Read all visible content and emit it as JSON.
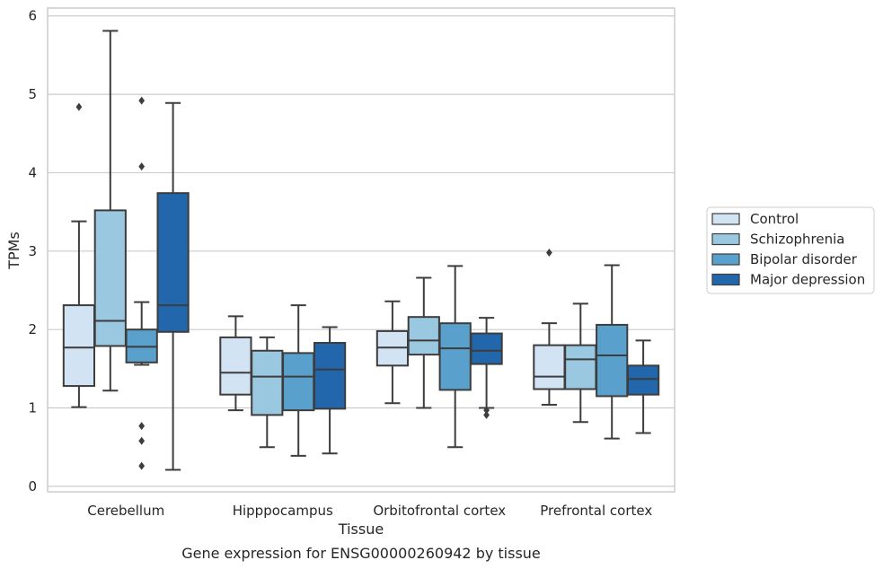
{
  "chart_data": {
    "type": "box",
    "title": "",
    "caption": "Gene expression for ENSG00000260942 by tissue",
    "xlabel": "Tissue",
    "ylabel": "TPMs",
    "ylim": [
      -0.07,
      6.1
    ],
    "yticks": [
      0,
      1,
      2,
      3,
      4,
      5,
      6
    ],
    "grid": "horizontal",
    "legend_position": "right",
    "categories": [
      "Cerebellum",
      "Hipppocampus",
      "Orbitofrontal cortex",
      "Prefrontal cortex"
    ],
    "series": [
      {
        "name": "Control",
        "color": "#d2e3f3",
        "boxes": [
          {
            "whislo": 1.01,
            "q1": 1.28,
            "med": 1.77,
            "q3": 2.31,
            "whishi": 3.38,
            "fliers": [
              4.84
            ]
          },
          {
            "whislo": 0.97,
            "q1": 1.17,
            "med": 1.45,
            "q3": 1.9,
            "whishi": 2.17,
            "fliers": []
          },
          {
            "whislo": 1.06,
            "q1": 1.54,
            "med": 1.77,
            "q3": 1.98,
            "whishi": 2.36,
            "fliers": []
          },
          {
            "whislo": 1.04,
            "q1": 1.24,
            "med": 1.4,
            "q3": 1.8,
            "whishi": 2.08,
            "fliers": [
              2.98
            ]
          }
        ]
      },
      {
        "name": "Schizophrenia",
        "color": "#9ac8e0",
        "boxes": [
          {
            "whislo": 1.22,
            "q1": 1.79,
            "med": 2.11,
            "q3": 3.52,
            "whishi": 5.81,
            "fliers": []
          },
          {
            "whislo": 0.5,
            "q1": 0.91,
            "med": 1.4,
            "q3": 1.73,
            "whishi": 1.9,
            "fliers": []
          },
          {
            "whislo": 1.0,
            "q1": 1.68,
            "med": 1.86,
            "q3": 2.16,
            "whishi": 2.66,
            "fliers": []
          },
          {
            "whislo": 0.82,
            "q1": 1.24,
            "med": 1.62,
            "q3": 1.8,
            "whishi": 2.33,
            "fliers": []
          }
        ]
      },
      {
        "name": "Bipolar disorder",
        "color": "#5aa0cd",
        "boxes": [
          {
            "whislo": 1.55,
            "q1": 1.58,
            "med": 1.78,
            "q3": 2.0,
            "whishi": 2.35,
            "fliers": [
              0.26,
              0.58,
              0.77,
              4.08,
              4.92
            ]
          },
          {
            "whislo": 0.39,
            "q1": 0.97,
            "med": 1.4,
            "q3": 1.7,
            "whishi": 2.31,
            "fliers": []
          },
          {
            "whislo": 0.5,
            "q1": 1.23,
            "med": 1.76,
            "q3": 2.08,
            "whishi": 2.81,
            "fliers": []
          },
          {
            "whislo": 0.61,
            "q1": 1.15,
            "med": 1.67,
            "q3": 2.06,
            "whishi": 2.82,
            "fliers": []
          }
        ]
      },
      {
        "name": "Major depression",
        "color": "#2266ac",
        "boxes": [
          {
            "whislo": 0.21,
            "q1": 1.97,
            "med": 2.31,
            "q3": 3.74,
            "whishi": 4.89,
            "fliers": []
          },
          {
            "whislo": 0.42,
            "q1": 0.99,
            "med": 1.49,
            "q3": 1.83,
            "whishi": 2.03,
            "fliers": []
          },
          {
            "whislo": 1.0,
            "q1": 1.56,
            "med": 1.73,
            "q3": 1.95,
            "whishi": 2.15,
            "fliers": [
              0.91,
              0.97
            ]
          },
          {
            "whislo": 0.68,
            "q1": 1.17,
            "med": 1.37,
            "q3": 1.54,
            "whishi": 1.86,
            "fliers": []
          }
        ]
      }
    ]
  }
}
